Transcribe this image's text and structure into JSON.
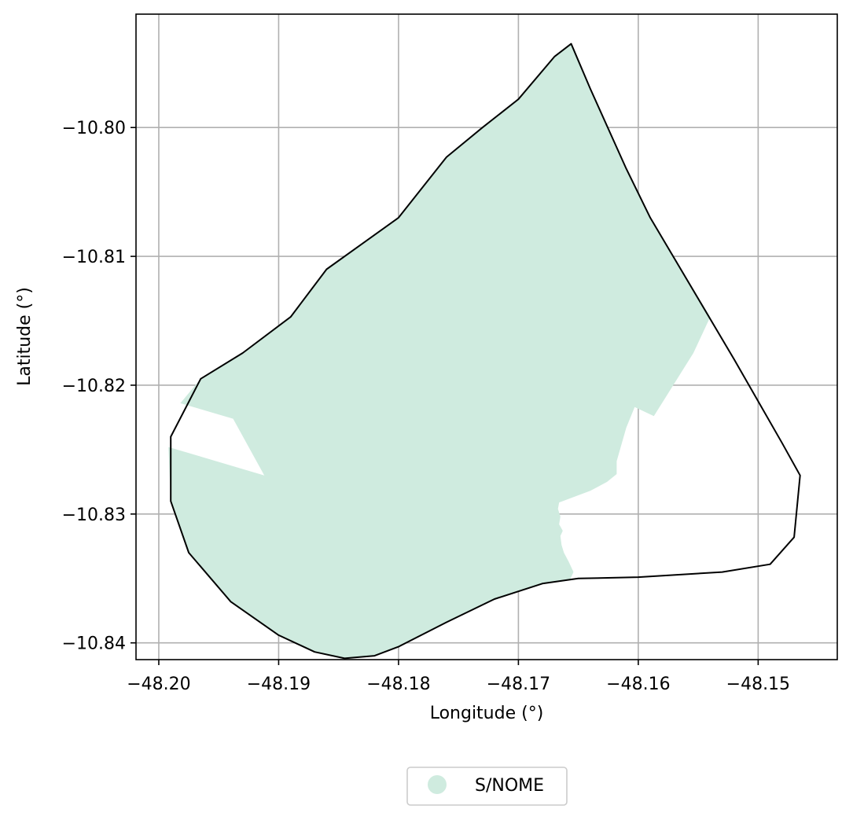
{
  "chart_data": {
    "type": "map",
    "xlabel": "Longitude (°)",
    "ylabel": "Latitude (°)",
    "xlim": [
      -48.2019,
      -48.1434
    ],
    "ylim": [
      -10.8413,
      -10.7912
    ],
    "grid": true,
    "x_ticks": [
      -48.2,
      -48.19,
      -48.18,
      -48.17,
      -48.16,
      -48.15
    ],
    "x_tick_labels": [
      "−48.20",
      "−48.19",
      "−48.18",
      "−48.17",
      "−48.16",
      "−48.15"
    ],
    "y_ticks": [
      -10.8,
      -10.81,
      -10.82,
      -10.83,
      -10.84
    ],
    "y_tick_labels": [
      "−10.80",
      "−10.81",
      "−10.82",
      "−10.83",
      "−10.84"
    ],
    "legend": {
      "placement": "bottom-center",
      "entries": [
        {
          "label": "S/NOME",
          "color": "#cfebdf"
        }
      ]
    },
    "fill_color": "#cfebdf",
    "boundary_color": "#000000",
    "grid_color": "#b0b0b0",
    "boundary": [
      [
        -48.1656,
        -10.7935
      ],
      [
        -48.167,
        -10.7945
      ],
      [
        -48.17,
        -10.7978
      ],
      [
        -48.173,
        -10.8
      ],
      [
        -48.176,
        -10.8023
      ],
      [
        -48.18,
        -10.807
      ],
      [
        -48.183,
        -10.809
      ],
      [
        -48.186,
        -10.811
      ],
      [
        -48.189,
        -10.8147
      ],
      [
        -48.193,
        -10.8175
      ],
      [
        -48.1965,
        -10.8195
      ],
      [
        -48.199,
        -10.824
      ],
      [
        -48.199,
        -10.829
      ],
      [
        -48.1975,
        -10.833
      ],
      [
        -48.194,
        -10.8368
      ],
      [
        -48.19,
        -10.8394
      ],
      [
        -48.187,
        -10.8407
      ],
      [
        -48.1845,
        -10.8412
      ],
      [
        -48.182,
        -10.841
      ],
      [
        -48.18,
        -10.8403
      ],
      [
        -48.176,
        -10.8384
      ],
      [
        -48.172,
        -10.8366
      ],
      [
        -48.168,
        -10.8354
      ],
      [
        -48.165,
        -10.835
      ],
      [
        -48.16,
        -10.8349
      ],
      [
        -48.153,
        -10.8345
      ],
      [
        -48.149,
        -10.8339
      ],
      [
        -48.147,
        -10.8318
      ],
      [
        -48.1465,
        -10.827
      ],
      [
        -48.148,
        -10.8245
      ],
      [
        -48.152,
        -10.818
      ],
      [
        -48.159,
        -10.807
      ],
      [
        -48.161,
        -10.8032
      ],
      [
        -48.164,
        -10.797
      ]
    ],
    "filled_region": [
      [
        -48.1656,
        -10.7935
      ],
      [
        -48.167,
        -10.7945
      ],
      [
        -48.17,
        -10.7978
      ],
      [
        -48.173,
        -10.8
      ],
      [
        -48.176,
        -10.8023
      ],
      [
        -48.18,
        -10.807
      ],
      [
        -48.183,
        -10.809
      ],
      [
        -48.186,
        -10.811
      ],
      [
        -48.189,
        -10.8147
      ],
      [
        -48.193,
        -10.8175
      ],
      [
        -48.1965,
        -10.8195
      ],
      [
        -48.1982,
        -10.8214
      ],
      [
        -48.1938,
        -10.8226
      ],
      [
        -48.1912,
        -10.827
      ],
      [
        -48.1992,
        -10.8248
      ],
      [
        -48.199,
        -10.829
      ],
      [
        -48.1975,
        -10.833
      ],
      [
        -48.194,
        -10.8368
      ],
      [
        -48.19,
        -10.8394
      ],
      [
        -48.187,
        -10.8407
      ],
      [
        -48.1845,
        -10.8412
      ],
      [
        -48.182,
        -10.841
      ],
      [
        -48.18,
        -10.8403
      ],
      [
        -48.176,
        -10.8384
      ],
      [
        -48.172,
        -10.8366
      ],
      [
        -48.168,
        -10.8354
      ],
      [
        -48.1657,
        -10.8351
      ],
      [
        -48.1654,
        -10.8345
      ],
      [
        -48.1658,
        -10.8337
      ],
      [
        -48.1662,
        -10.833
      ],
      [
        -48.1664,
        -10.8324
      ],
      [
        -48.1665,
        -10.8317
      ],
      [
        -48.1663,
        -10.8313
      ],
      [
        -48.1666,
        -10.8308
      ],
      [
        -48.1665,
        -10.8302
      ],
      [
        -48.1667,
        -10.8296
      ],
      [
        -48.1666,
        -10.8291
      ],
      [
        -48.164,
        -10.8282
      ],
      [
        -48.1626,
        -10.8275
      ],
      [
        -48.1618,
        -10.8269
      ],
      [
        -48.1618,
        -10.8259
      ],
      [
        -48.161,
        -10.8233
      ],
      [
        -48.1603,
        -10.8217
      ],
      [
        -48.1587,
        -10.8224
      ],
      [
        -48.1554,
        -10.8175
      ],
      [
        -48.154,
        -10.8147
      ],
      [
        -48.159,
        -10.807
      ],
      [
        -48.161,
        -10.8032
      ],
      [
        -48.164,
        -10.797
      ]
    ]
  }
}
